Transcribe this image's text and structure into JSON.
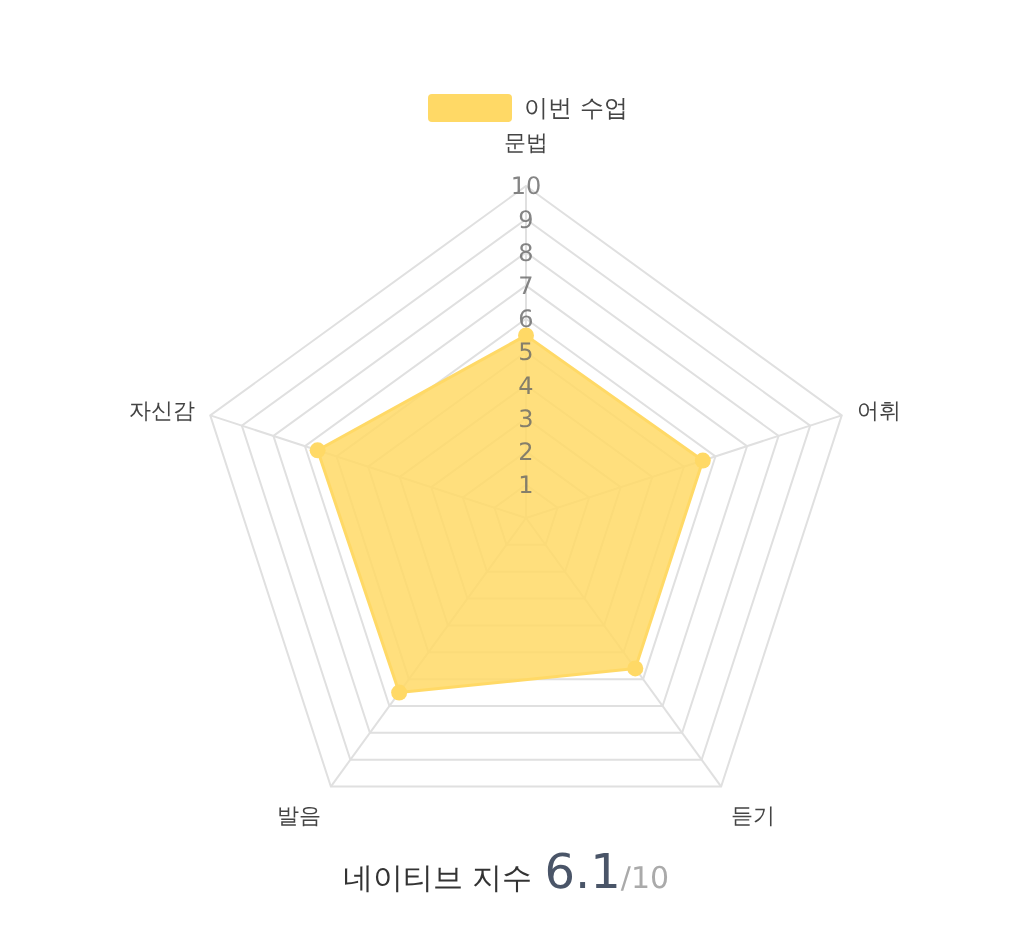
{
  "chart_data": {
    "type": "radar",
    "categories": [
      "문법",
      "어휘",
      "듣기",
      "발음",
      "자신감"
    ],
    "series": [
      {
        "name": "이번 수업",
        "color": "#ffd966",
        "values": [
          5.5,
          5.6,
          5.6,
          6.5,
          6.6
        ]
      }
    ],
    "ylim": [
      0,
      10
    ],
    "yticks": [
      1,
      2,
      3,
      4,
      5,
      6,
      7,
      8,
      9,
      10
    ],
    "grid": true,
    "legend": "top",
    "marker": "circle",
    "annotations": [
      "네이티브 지수",
      "6.1",
      "/10"
    ]
  }
}
